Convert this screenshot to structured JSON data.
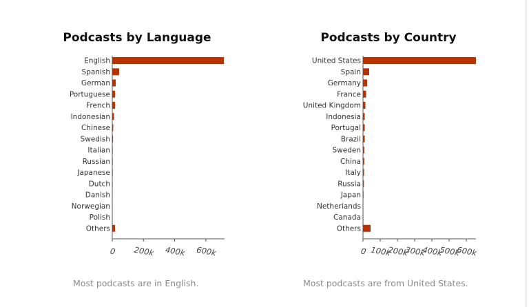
{
  "colors": {
    "bar": "#b83200",
    "axis": "#555555"
  },
  "chart_data": [
    {
      "type": "bar",
      "orientation": "horizontal",
      "title": "Podcasts by Language",
      "categories": [
        "English",
        "Spanish",
        "German",
        "Portuguese",
        "French",
        "Indonesian",
        "Chinese",
        "Swedish",
        "Italian",
        "Russian",
        "Japanese",
        "Dutch",
        "Danish",
        "Norwegian",
        "Polish",
        "Others"
      ],
      "values": [
        716000,
        44000,
        22000,
        18000,
        18000,
        11000,
        6000,
        5000,
        4000,
        4000,
        4000,
        3000,
        2000,
        1000,
        1000,
        18000
      ],
      "xticks": [
        0,
        200000,
        400000,
        600000
      ],
      "xtick_labels": [
        "0",
        "200k",
        "400k",
        "600k"
      ],
      "xlim": [
        0,
        720000
      ],
      "caption": "Most podcasts are in English."
    },
    {
      "type": "bar",
      "orientation": "horizontal",
      "title": "Podcasts by Country",
      "categories": [
        "United States",
        "Spain",
        "Germany",
        "France",
        "United Kingdom",
        "Indonesia",
        "Portugal",
        "Brazil",
        "Sweden",
        "China",
        "Italy",
        "Russia",
        "Japan",
        "Netherlands",
        "Canada",
        "Others"
      ],
      "values": [
        656000,
        36000,
        24000,
        18000,
        14000,
        10000,
        10000,
        10000,
        7000,
        7000,
        6000,
        5000,
        4000,
        2000,
        2000,
        44000
      ],
      "xticks": [
        0,
        100000,
        200000,
        300000,
        400000,
        500000,
        600000
      ],
      "xtick_labels": [
        "0",
        "100k",
        "200k",
        "300k",
        "400k",
        "500k",
        "600k"
      ],
      "xlim": [
        0,
        656000
      ],
      "caption": "Most podcasts are from United States."
    }
  ]
}
